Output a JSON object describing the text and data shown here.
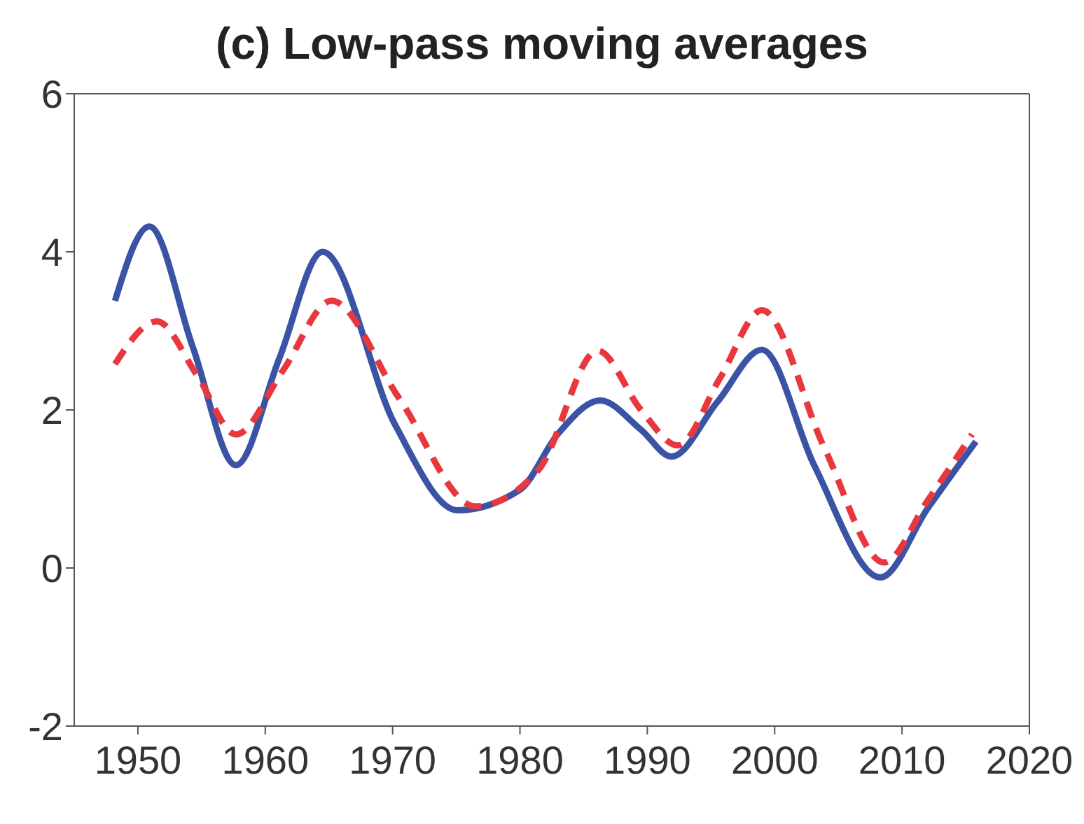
{
  "chart_data": {
    "type": "line",
    "title": "(c) Low-pass moving averages",
    "xlim": [
      1945,
      2020
    ],
    "xticks": [
      1950,
      1960,
      1970,
      1980,
      1990,
      2000,
      2010,
      2020
    ],
    "ylim": [
      -2,
      6
    ],
    "yticks": [
      -2,
      0,
      2,
      4,
      6
    ],
    "grid": false,
    "series": [
      {
        "color": "#3a53a4",
        "line_style": "solid",
        "x": [
          1948.2,
          1950.9,
          1954.3,
          1957.7,
          1961.1,
          1964.5,
          1970.2,
          1975.1,
          1980,
          1983,
          1986.3,
          1989.5,
          1991.9,
          1995.5,
          1999,
          2003.1,
          2008.3,
          2012,
          2015.8
        ],
        "values": [
          3.38,
          4.32,
          2.8,
          1.3,
          2.65,
          4.0,
          1.81,
          0.73,
          0.99,
          1.7,
          2.12,
          1.75,
          1.41,
          2.1,
          2.76,
          1.3,
          -0.12,
          0.75,
          1.6
        ]
      },
      {
        "color": "#e8383d",
        "line_style": "dashed",
        "x": [
          1948.2,
          1951.5,
          1954.6,
          1957.7,
          1961.4,
          1965.2,
          1970.5,
          1976.5,
          1981.5,
          1986.1,
          1989.5,
          1992.4,
          1995.7,
          1999,
          2003.9,
          2008.6,
          2012,
          2015.5
        ],
        "values": [
          2.58,
          3.12,
          2.45,
          1.69,
          2.5,
          3.38,
          2.15,
          0.78,
          1.25,
          2.75,
          2.0,
          1.55,
          2.4,
          3.26,
          1.52,
          0.07,
          0.85,
          1.69
        ]
      }
    ]
  }
}
